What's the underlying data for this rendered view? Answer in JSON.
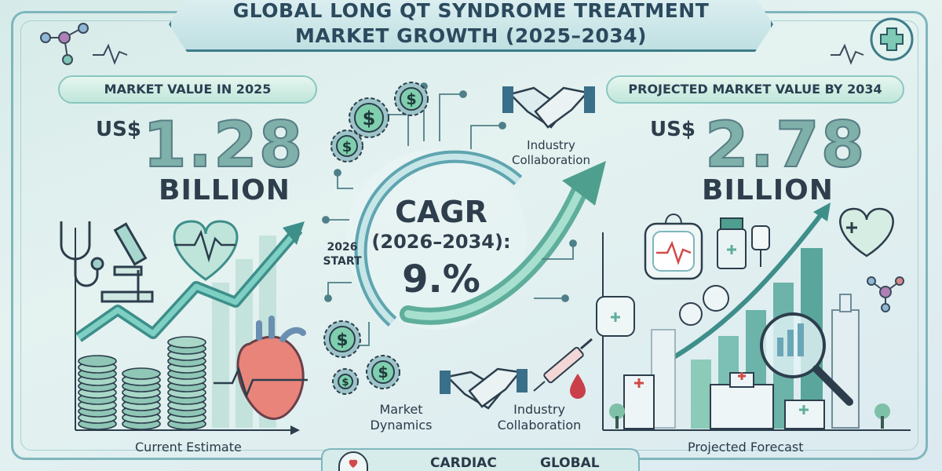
{
  "title": {
    "line1": "GLOBAL LONG QT SYNDROME TREATMENT",
    "line2": "MARKET GROWTH (2025–2034)"
  },
  "left": {
    "header": "MARKET VALUE IN 2025",
    "currency": "US$",
    "value": "1.28",
    "unit": "BILLION",
    "caption": "Current Estimate"
  },
  "right": {
    "header": "PROJECTED MARKET VALUE BY 2034",
    "currency": "US$",
    "value": "2.78",
    "unit": "BILLION",
    "caption": "Projected Forecast"
  },
  "center": {
    "cagr_label": "CAGR",
    "cagr_period": "(2026–2034):",
    "cagr_value": "9.%",
    "start_line1": "2026",
    "start_line2": "START",
    "collab_top_line1": "Industry",
    "collab_top_line2": "Collaboration",
    "dynamics_line1": "Market",
    "dynamics_line2": "Dynamics",
    "collab_bottom_line1": "Industry",
    "collab_bottom_line2": "Collaboration"
  },
  "footer": {
    "tab1": "CARDIAC",
    "tab2": "GLOBAL"
  },
  "icons": [
    "molecule-icon",
    "pulse-icon",
    "medical-cross-icon",
    "stethoscope-icon",
    "microscope-icon",
    "heart-pulse-icon",
    "coin-stack-icon",
    "heart-icon",
    "dollar-gear-icon",
    "handshake-icon",
    "syringe-icon",
    "blood-drop-icon",
    "pacemaker-icon",
    "medicine-bottle-icon",
    "iv-bag-icon",
    "doctor-icon",
    "heart-cross-icon",
    "magnifier-icon",
    "hospital-icon",
    "skyscraper-icon",
    "tree-icon"
  ],
  "colors": {
    "background": "#dcefed",
    "accent": "#3d7c8a",
    "teal": "#5fae9c",
    "heart_red": "#e06a6a",
    "text": "#2b3f52"
  }
}
